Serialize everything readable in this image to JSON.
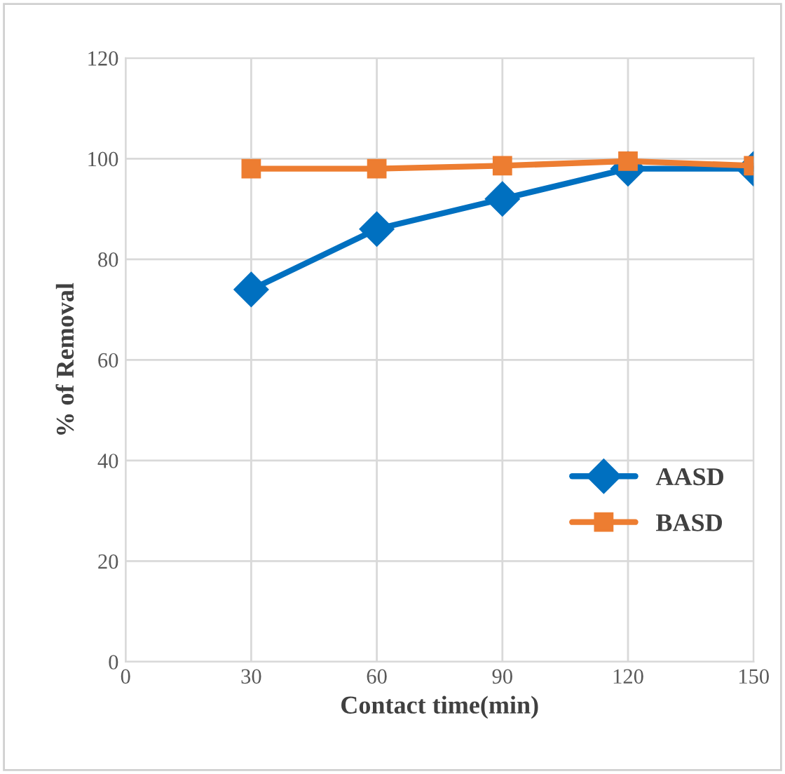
{
  "chart_data": {
    "type": "line",
    "xlabel": "Contact time(min)",
    "ylabel": "% of Removal",
    "x": [
      30,
      60,
      90,
      120,
      150
    ],
    "series": [
      {
        "name": "AASD",
        "color": "#0070c0",
        "marker": "diamond",
        "values": [
          74,
          86,
          92,
          98,
          98
        ]
      },
      {
        "name": "BASD",
        "color": "#ed7d31",
        "marker": "square",
        "values": [
          98,
          98,
          98.6,
          99.5,
          98.6
        ]
      }
    ],
    "xlim": [
      0,
      150
    ],
    "xticks": [
      0,
      30,
      60,
      90,
      120,
      150
    ],
    "ylim": [
      0,
      120
    ],
    "yticks": [
      0,
      20,
      40,
      60,
      80,
      100,
      120
    ],
    "grid": true,
    "legend": "bottom right"
  }
}
